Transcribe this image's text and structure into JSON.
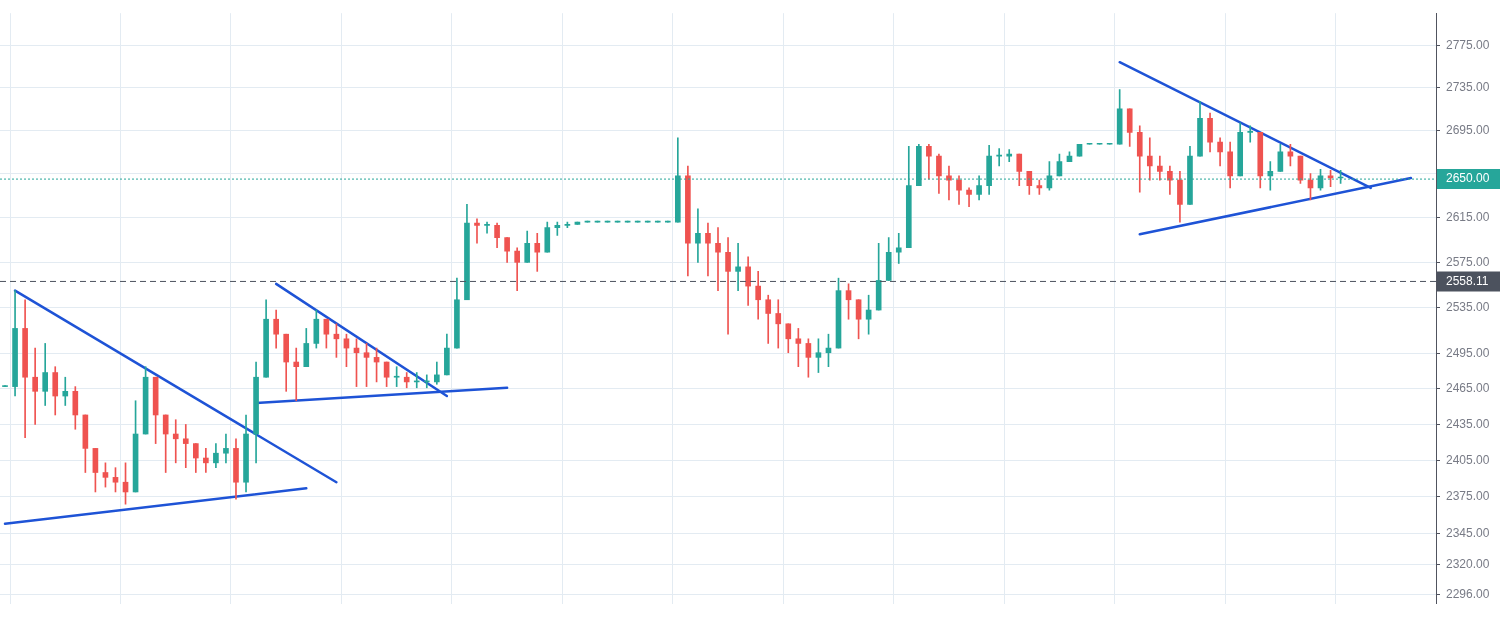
{
  "chart_data": {
    "type": "candlestick",
    "categories": [
      null,
      null,
      null,
      null,
      null,
      null,
      null,
      null,
      null,
      null,
      null,
      null,
      null,
      null,
      null,
      null,
      null,
      null,
      null,
      null,
      null,
      null,
      null,
      null,
      null,
      null,
      null,
      null,
      null,
      null,
      null,
      null,
      null,
      null,
      null,
      null,
      null,
      null,
      null,
      null,
      null,
      null,
      null,
      null,
      null,
      null,
      null,
      null,
      null,
      null,
      null,
      null,
      null,
      null,
      null,
      null,
      null,
      null,
      null,
      null,
      null,
      null,
      null,
      null,
      null,
      null,
      null,
      null,
      null,
      null,
      null,
      null,
      null,
      null,
      null,
      null,
      null,
      null,
      null,
      null,
      null,
      null,
      null,
      null,
      null,
      null,
      null,
      null,
      null,
      null,
      null,
      null,
      null,
      null,
      null,
      null,
      null,
      null,
      null,
      null,
      null,
      null,
      null,
      null,
      null,
      null,
      null,
      null,
      null,
      null,
      null,
      null,
      null,
      null,
      null,
      null,
      null,
      null,
      null,
      null,
      null,
      null,
      null,
      null,
      null,
      null,
      null,
      null,
      null,
      null,
      null,
      null,
      null,
      null,
      null,
      null,
      null,
      null,
      null,
      null,
      null,
      null,
      null
    ],
    "ohlc": [
      [
        2467,
        2467,
        2467,
        2467
      ],
      [
        2467,
        2550,
        2459,
        2517
      ],
      [
        2517,
        2542,
        2424,
        2475
      ],
      [
        2475,
        2500,
        2435,
        2463
      ],
      [
        2463,
        2504,
        2451,
        2479
      ],
      [
        2479,
        2484,
        2443,
        2459
      ],
      [
        2459,
        2475,
        2451,
        2463
      ],
      [
        2463,
        2467,
        2431,
        2443
      ],
      [
        2443,
        2443,
        2395,
        2415
      ],
      [
        2415,
        2415,
        2379,
        2395
      ],
      [
        2395,
        2403,
        2383,
        2391
      ],
      [
        2391,
        2399,
        2379,
        2387
      ],
      [
        2387,
        2403,
        2369,
        2379
      ],
      [
        2379,
        2455,
        2379,
        2427
      ],
      [
        2427,
        2484,
        2427,
        2475
      ],
      [
        2475,
        2475,
        2419,
        2443
      ],
      [
        2443,
        2443,
        2395,
        2427
      ],
      [
        2427,
        2439,
        2403,
        2423
      ],
      [
        2423,
        2435,
        2399,
        2419
      ],
      [
        2419,
        2419,
        2395,
        2407
      ],
      [
        2407,
        2415,
        2395,
        2403
      ],
      [
        2403,
        2419,
        2399,
        2411
      ],
      [
        2411,
        2427,
        2403,
        2415
      ],
      [
        2415,
        2423,
        2373,
        2387
      ],
      [
        2387,
        2443,
        2379,
        2427
      ],
      [
        2427,
        2488,
        2403,
        2475
      ],
      [
        2475,
        2542,
        2475,
        2525
      ],
      [
        2525,
        2533,
        2500,
        2512
      ],
      [
        2512,
        2512,
        2463,
        2488
      ],
      [
        2488,
        2500,
        2455,
        2484
      ],
      [
        2484,
        2517,
        2484,
        2504
      ],
      [
        2504,
        2533,
        2500,
        2525
      ],
      [
        2525,
        2525,
        2500,
        2512
      ],
      [
        2512,
        2521,
        2492,
        2508
      ],
      [
        2508,
        2512,
        2484,
        2500
      ],
      [
        2500,
        2508,
        2467,
        2496
      ],
      [
        2496,
        2504,
        2467,
        2492
      ],
      [
        2492,
        2500,
        2471,
        2488
      ],
      [
        2488,
        2488,
        2467,
        2475
      ],
      [
        2475,
        2484,
        2467,
        2475
      ],
      [
        2475,
        2479,
        2466,
        2471
      ],
      [
        2471,
        2479,
        2466,
        2471
      ],
      [
        2471,
        2477,
        2466,
        2471
      ],
      [
        2471,
        2488,
        2469,
        2477
      ],
      [
        2477,
        2512,
        2477,
        2500
      ],
      [
        2500,
        2561,
        2500,
        2542
      ],
      [
        2542,
        2627,
        2542,
        2610
      ],
      [
        2610,
        2614,
        2592,
        2608
      ],
      [
        2608,
        2611,
        2601,
        2608
      ],
      [
        2608,
        2610,
        2588,
        2597
      ],
      [
        2597,
        2597,
        2575,
        2585
      ],
      [
        2585,
        2588,
        2550,
        2575
      ],
      [
        2575,
        2603,
        2575,
        2592
      ],
      [
        2592,
        2601,
        2567,
        2584
      ],
      [
        2584,
        2611,
        2584,
        2606
      ],
      [
        2606,
        2611,
        2599,
        2608
      ],
      [
        2608,
        2611,
        2606,
        2609
      ],
      [
        2609,
        2611,
        2609,
        2611
      ],
      [
        2611,
        2611,
        2611,
        2611
      ],
      [
        2611,
        2611,
        2611,
        2611
      ],
      [
        2611,
        2611,
        2611,
        2611
      ],
      [
        2611,
        2611,
        2611,
        2611
      ],
      [
        2611,
        2611,
        2611,
        2611
      ],
      [
        2611,
        2611,
        2611,
        2611
      ],
      [
        2611,
        2611,
        2611,
        2611
      ],
      [
        2611,
        2611,
        2611,
        2611
      ],
      [
        2611,
        2611,
        2611,
        2611
      ],
      [
        2611,
        2688,
        2611,
        2653
      ],
      [
        2653,
        2662,
        2563,
        2592
      ],
      [
        2592,
        2623,
        2575,
        2601
      ],
      [
        2601,
        2610,
        2563,
        2592
      ],
      [
        2592,
        2606,
        2550,
        2584
      ],
      [
        2584,
        2597,
        2512,
        2567
      ],
      [
        2567,
        2592,
        2550,
        2571
      ],
      [
        2571,
        2580,
        2537,
        2554
      ],
      [
        2554,
        2567,
        2525,
        2542
      ],
      [
        2542,
        2546,
        2504,
        2530
      ],
      [
        2530,
        2542,
        2500,
        2521
      ],
      [
        2521,
        2521,
        2496,
        2508
      ],
      [
        2508,
        2517,
        2484,
        2504
      ],
      [
        2504,
        2508,
        2475,
        2492
      ],
      [
        2492,
        2508,
        2479,
        2496
      ],
      [
        2496,
        2512,
        2484,
        2500
      ],
      [
        2500,
        2561,
        2500,
        2550
      ],
      [
        2550,
        2556,
        2525,
        2542
      ],
      [
        2542,
        2542,
        2508,
        2525
      ],
      [
        2525,
        2546,
        2512,
        2533
      ],
      [
        2533,
        2592,
        2533,
        2559
      ],
      [
        2559,
        2597,
        2559,
        2584
      ],
      [
        2584,
        2601,
        2574,
        2588
      ],
      [
        2588,
        2680,
        2588,
        2644
      ],
      [
        2644,
        2682,
        2644,
        2680
      ],
      [
        2680,
        2682,
        2650,
        2671
      ],
      [
        2671,
        2673,
        2637,
        2653
      ],
      [
        2653,
        2662,
        2631,
        2649
      ],
      [
        2649,
        2653,
        2627,
        2640
      ],
      [
        2640,
        2642,
        2625,
        2636
      ],
      [
        2636,
        2653,
        2631,
        2644
      ],
      [
        2644,
        2681,
        2636,
        2671
      ],
      [
        2671,
        2678,
        2662,
        2671
      ],
      [
        2671,
        2677,
        2666,
        2673
      ],
      [
        2673,
        2673,
        2644,
        2657
      ],
      [
        2657,
        2657,
        2636,
        2644
      ],
      [
        2644,
        2649,
        2636,
        2642
      ],
      [
        2642,
        2666,
        2640,
        2653
      ],
      [
        2653,
        2673,
        2653,
        2666
      ],
      [
        2666,
        2675,
        2666,
        2671
      ],
      [
        2671,
        2682,
        2671,
        2682
      ],
      [
        2682,
        2682,
        2682,
        2682
      ],
      [
        2682,
        2682,
        2682,
        2682
      ],
      [
        2682,
        2682,
        2682,
        2682
      ],
      [
        2682,
        2733,
        2682,
        2715
      ],
      [
        2715,
        2715,
        2680,
        2693
      ],
      [
        2693,
        2699,
        2638,
        2671
      ],
      [
        2671,
        2688,
        2649,
        2662
      ],
      [
        2662,
        2671,
        2649,
        2657
      ],
      [
        2657,
        2662,
        2636,
        2649
      ],
      [
        2649,
        2657,
        2611,
        2627
      ],
      [
        2627,
        2680,
        2627,
        2671
      ],
      [
        2671,
        2722,
        2671,
        2706
      ],
      [
        2706,
        2711,
        2675,
        2684
      ],
      [
        2684,
        2688,
        2662,
        2675
      ],
      [
        2675,
        2684,
        2642,
        2653
      ],
      [
        2653,
        2702,
        2653,
        2693
      ],
      [
        2693,
        2699,
        2684,
        2693
      ],
      [
        2693,
        2693,
        2642,
        2653
      ],
      [
        2653,
        2666,
        2640,
        2657
      ],
      [
        2657,
        2682,
        2657,
        2675
      ],
      [
        2675,
        2682,
        2662,
        2671
      ],
      [
        2671,
        2671,
        2646,
        2649
      ],
      [
        2649,
        2655,
        2631,
        2642
      ],
      [
        2642,
        2659,
        2640,
        2653
      ],
      [
        2653,
        2658,
        2643,
        2651
      ],
      [
        2651,
        2658,
        2646,
        2651
      ],
      null,
      null,
      null,
      null,
      null,
      null,
      null,
      null,
      null
    ],
    "series": [
      {
        "type": "line",
        "color": "#1e53d6",
        "values": [
          null,
          2550,
          null,
          null,
          null,
          null,
          null,
          null,
          null,
          null,
          null,
          null,
          null,
          null,
          null,
          null,
          null,
          null,
          null,
          null,
          null,
          null,
          null,
          null,
          null,
          null,
          null,
          null,
          null,
          null,
          null,
          null,
          null,
          2387,
          null,
          null,
          null,
          null,
          null,
          null,
          null,
          null,
          null,
          null,
          null,
          null,
          null,
          null,
          null,
          null,
          null,
          null,
          null,
          null,
          null,
          null,
          null,
          null,
          null,
          null,
          null,
          null,
          null,
          null,
          null,
          null,
          null,
          null,
          null,
          null,
          null,
          null,
          null,
          null,
          null,
          null,
          null,
          null,
          null,
          null,
          null,
          null,
          null,
          null,
          null,
          null,
          null,
          null,
          null,
          null,
          null,
          null,
          null,
          null,
          null,
          null,
          null,
          null,
          null,
          null,
          null,
          null,
          null,
          null,
          null,
          null,
          null,
          null,
          null,
          null,
          null,
          null,
          null,
          null,
          null,
          null,
          null,
          null,
          null,
          null,
          null,
          null,
          null,
          null,
          null,
          null,
          null,
          null,
          null,
          null,
          null,
          null,
          null,
          null,
          null,
          null,
          null,
          null,
          null,
          null,
          null,
          null,
          null
        ]
      },
      {
        "type": "line",
        "color": "#1e53d6",
        "values": [
          2353,
          null,
          null,
          null,
          null,
          null,
          null,
          null,
          null,
          null,
          null,
          null,
          null,
          null,
          null,
          null,
          null,
          null,
          null,
          null,
          null,
          null,
          null,
          null,
          null,
          null,
          null,
          null,
          null,
          null,
          2382,
          null,
          null,
          null,
          null,
          null,
          null,
          null,
          null,
          null,
          null,
          null,
          null,
          null,
          null,
          null,
          null,
          null,
          null,
          null,
          null,
          null,
          null,
          null,
          null,
          null,
          null,
          null,
          null,
          null,
          null,
          null,
          null,
          null,
          null,
          null,
          null,
          null,
          null,
          null,
          null,
          null,
          null,
          null,
          null,
          null,
          null,
          null,
          null,
          null,
          null,
          null,
          null,
          null,
          null,
          null,
          null,
          null,
          null,
          null,
          null,
          null,
          null,
          null,
          null,
          null,
          null,
          null,
          null,
          null,
          null,
          null,
          null,
          null,
          null,
          null,
          null,
          null,
          null,
          null,
          null,
          null,
          null,
          null,
          null,
          null,
          null,
          null,
          null,
          null,
          null,
          null,
          null,
          null,
          null,
          null,
          null,
          null,
          null,
          null,
          null,
          null,
          null,
          null,
          null,
          null,
          null,
          null,
          null,
          null,
          null,
          null,
          null
        ]
      },
      {
        "type": "line",
        "color": "#1e53d6",
        "values": [
          null,
          null,
          null,
          null,
          null,
          null,
          null,
          null,
          null,
          null,
          null,
          null,
          null,
          null,
          null,
          null,
          null,
          null,
          null,
          null,
          null,
          null,
          null,
          null,
          null,
          null,
          null,
          2556,
          null,
          null,
          null,
          null,
          null,
          null,
          null,
          null,
          null,
          null,
          null,
          null,
          null,
          null,
          null,
          null,
          2459,
          null,
          null,
          null,
          null,
          null,
          null,
          null,
          null,
          null,
          null,
          null,
          null,
          null,
          null,
          null,
          null,
          null,
          null,
          null,
          null,
          null,
          null,
          null,
          null,
          null,
          null,
          null,
          null,
          null,
          null,
          null,
          null,
          null,
          null,
          null,
          null,
          null,
          null,
          null,
          null,
          null,
          null,
          null,
          null,
          null,
          null,
          null,
          null,
          null,
          null,
          null,
          null,
          null,
          null,
          null,
          null,
          null,
          null,
          null,
          null,
          null,
          null,
          null,
          null,
          null,
          null,
          null,
          null,
          null,
          null,
          null,
          null,
          null,
          null,
          null,
          null,
          null,
          null,
          null,
          null,
          null,
          null,
          null,
          null,
          null,
          null,
          null,
          null,
          null,
          null,
          null,
          null,
          null,
          null,
          null,
          null,
          null,
          null
        ]
      },
      {
        "type": "line",
        "color": "#1e53d6",
        "values": [
          null,
          null,
          null,
          null,
          null,
          null,
          null,
          null,
          null,
          null,
          null,
          null,
          null,
          null,
          null,
          null,
          null,
          null,
          null,
          null,
          null,
          null,
          null,
          null,
          null,
          2453,
          null,
          null,
          null,
          null,
          null,
          null,
          null,
          null,
          null,
          null,
          null,
          null,
          null,
          null,
          null,
          null,
          null,
          null,
          null,
          null,
          null,
          null,
          null,
          null,
          2466,
          null,
          null,
          null,
          null,
          null,
          null,
          null,
          null,
          null,
          null,
          null,
          null,
          null,
          null,
          null,
          null,
          null,
          null,
          null,
          null,
          null,
          null,
          null,
          null,
          null,
          null,
          null,
          null,
          null,
          null,
          null,
          null,
          null,
          null,
          null,
          null,
          null,
          null,
          null,
          null,
          null,
          null,
          null,
          null,
          null,
          null,
          null,
          null,
          null,
          null,
          null,
          null,
          null,
          null,
          null,
          null,
          null,
          null,
          null,
          null,
          null,
          null,
          null,
          null,
          null,
          null,
          null,
          null,
          null,
          null,
          null,
          null,
          null,
          null,
          null,
          null,
          null,
          null,
          null,
          null,
          null,
          null,
          null,
          null,
          null,
          null,
          null,
          null,
          null,
          null,
          null,
          null
        ]
      },
      {
        "type": "line",
        "color": "#1e53d6",
        "values": [
          null,
          null,
          null,
          null,
          null,
          null,
          null,
          null,
          null,
          null,
          null,
          null,
          null,
          null,
          null,
          null,
          null,
          null,
          null,
          null,
          null,
          null,
          null,
          null,
          null,
          null,
          null,
          null,
          null,
          null,
          null,
          null,
          null,
          null,
          null,
          null,
          null,
          null,
          null,
          null,
          null,
          null,
          null,
          null,
          null,
          null,
          null,
          null,
          null,
          null,
          null,
          null,
          null,
          null,
          null,
          null,
          null,
          null,
          null,
          null,
          null,
          null,
          null,
          null,
          null,
          null,
          null,
          null,
          null,
          null,
          null,
          null,
          null,
          null,
          null,
          null,
          null,
          null,
          null,
          null,
          null,
          null,
          null,
          null,
          null,
          null,
          null,
          null,
          null,
          null,
          null,
          null,
          null,
          null,
          null,
          null,
          null,
          null,
          null,
          null,
          null,
          null,
          null,
          null,
          null,
          null,
          null,
          null,
          null,
          null,
          null,
          2759,
          null,
          null,
          null,
          null,
          null,
          null,
          null,
          null,
          null,
          null,
          null,
          null,
          null,
          null,
          null,
          null,
          null,
          null,
          null,
          null,
          null,
          null,
          null,
          null,
          2642,
          null,
          null,
          null,
          null,
          null,
          null
        ]
      },
      {
        "type": "line",
        "color": "#1e53d6",
        "values": [
          null,
          null,
          null,
          null,
          null,
          null,
          null,
          null,
          null,
          null,
          null,
          null,
          null,
          null,
          null,
          null,
          null,
          null,
          null,
          null,
          null,
          null,
          null,
          null,
          null,
          null,
          null,
          null,
          null,
          null,
          null,
          null,
          null,
          null,
          null,
          null,
          null,
          null,
          null,
          null,
          null,
          null,
          null,
          null,
          null,
          null,
          null,
          null,
          null,
          null,
          null,
          null,
          null,
          null,
          null,
          null,
          null,
          null,
          null,
          null,
          null,
          null,
          null,
          null,
          null,
          null,
          null,
          null,
          null,
          null,
          null,
          null,
          null,
          null,
          null,
          null,
          null,
          null,
          null,
          null,
          null,
          null,
          null,
          null,
          null,
          null,
          null,
          null,
          null,
          null,
          null,
          null,
          null,
          null,
          null,
          null,
          null,
          null,
          null,
          null,
          null,
          null,
          null,
          null,
          null,
          null,
          null,
          null,
          null,
          null,
          null,
          null,
          null,
          2600,
          null,
          null,
          null,
          null,
          null,
          null,
          null,
          null,
          null,
          null,
          null,
          null,
          null,
          null,
          null,
          null,
          null,
          null,
          null,
          null,
          null,
          null,
          null,
          null,
          null,
          null,
          2651,
          null,
          null
        ]
      }
    ],
    "ylim": [
      2289,
      2806
    ],
    "yticks": [
      {
        "value": 2296,
        "label": "2296.00"
      },
      {
        "value": 2320,
        "label": "2320.00"
      },
      {
        "value": 2345,
        "label": "2345.00"
      },
      {
        "value": 2375,
        "label": "2375.00"
      },
      {
        "value": 2405,
        "label": "2405.00"
      },
      {
        "value": 2435,
        "label": "2435.00"
      },
      {
        "value": 2465,
        "label": "2465.00"
      },
      {
        "value": 2495,
        "label": "2495.00"
      },
      {
        "value": 2535,
        "label": "2535.00"
      },
      {
        "value": 2575,
        "label": "2575.00"
      },
      {
        "value": 2615,
        "label": "2615.00"
      },
      {
        "value": 2655,
        "label": null
      },
      {
        "value": 2695,
        "label": "2695.00"
      },
      {
        "value": 2735,
        "label": "2735.00"
      },
      {
        "value": 2775,
        "label": "2775.00"
      }
    ],
    "log": true,
    "grid": true,
    "ref_lines": [
      {
        "axis": "y",
        "value": 2650,
        "label": "2650.00",
        "color": "#26a69a",
        "line_style": "dotted"
      },
      {
        "axis": "y",
        "value": 2558.11,
        "label": "2558.11",
        "color": "#4c525e",
        "line_style": "dashed"
      }
    ]
  }
}
